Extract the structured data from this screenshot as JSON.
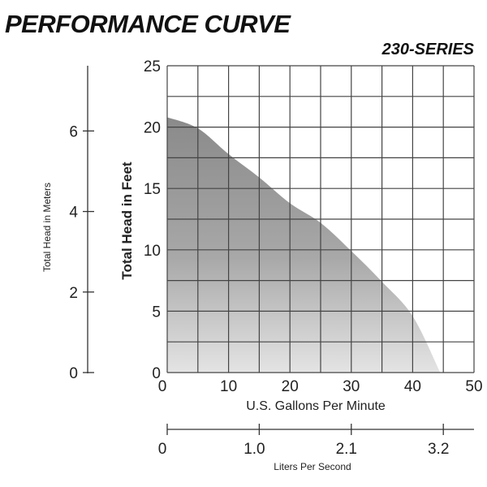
{
  "chart_data": {
    "type": "area",
    "title": "PERFORMANCE CURVE",
    "subtitle": "230-SERIES",
    "xlabel": "U.S. Gallons Per Minute",
    "ylabel": "Total Head in Feet",
    "xlim": [
      0,
      50
    ],
    "ylim": [
      0,
      25
    ],
    "x_ticks": [
      "10",
      "20",
      "30",
      "40",
      "50"
    ],
    "x_tick_values": [
      10,
      20,
      30,
      40,
      50
    ],
    "y_ticks": [
      "0",
      "5",
      "10",
      "15",
      "20",
      "25"
    ],
    "y_tick_values": [
      0,
      5,
      10,
      15,
      20,
      25
    ],
    "grid": true,
    "x_origin_label": "0",
    "secondary_x_axis": {
      "label": "Liters Per Second",
      "ticks": [
        "0",
        "1.0",
        "2.1",
        "3.2"
      ],
      "tick_gpm_values": [
        0,
        15,
        30,
        45
      ]
    },
    "secondary_y_axis": {
      "label": "Total Head in Meters",
      "ticks": [
        "0",
        "2",
        "4",
        "6"
      ],
      "tick_values": [
        0,
        2,
        4,
        6
      ]
    },
    "series": [
      {
        "x": [
          0,
          5,
          10,
          15,
          20,
          25,
          30,
          35,
          40,
          44.5
        ],
        "y": [
          20.8,
          19.9,
          17.8,
          15.9,
          13.8,
          12.2,
          9.9,
          7.4,
          4.6,
          0
        ]
      }
    ],
    "colors": {
      "fill_top": "#8a8a8a",
      "fill_bottom": "#e4e4e4",
      "grid": "#444444"
    }
  }
}
